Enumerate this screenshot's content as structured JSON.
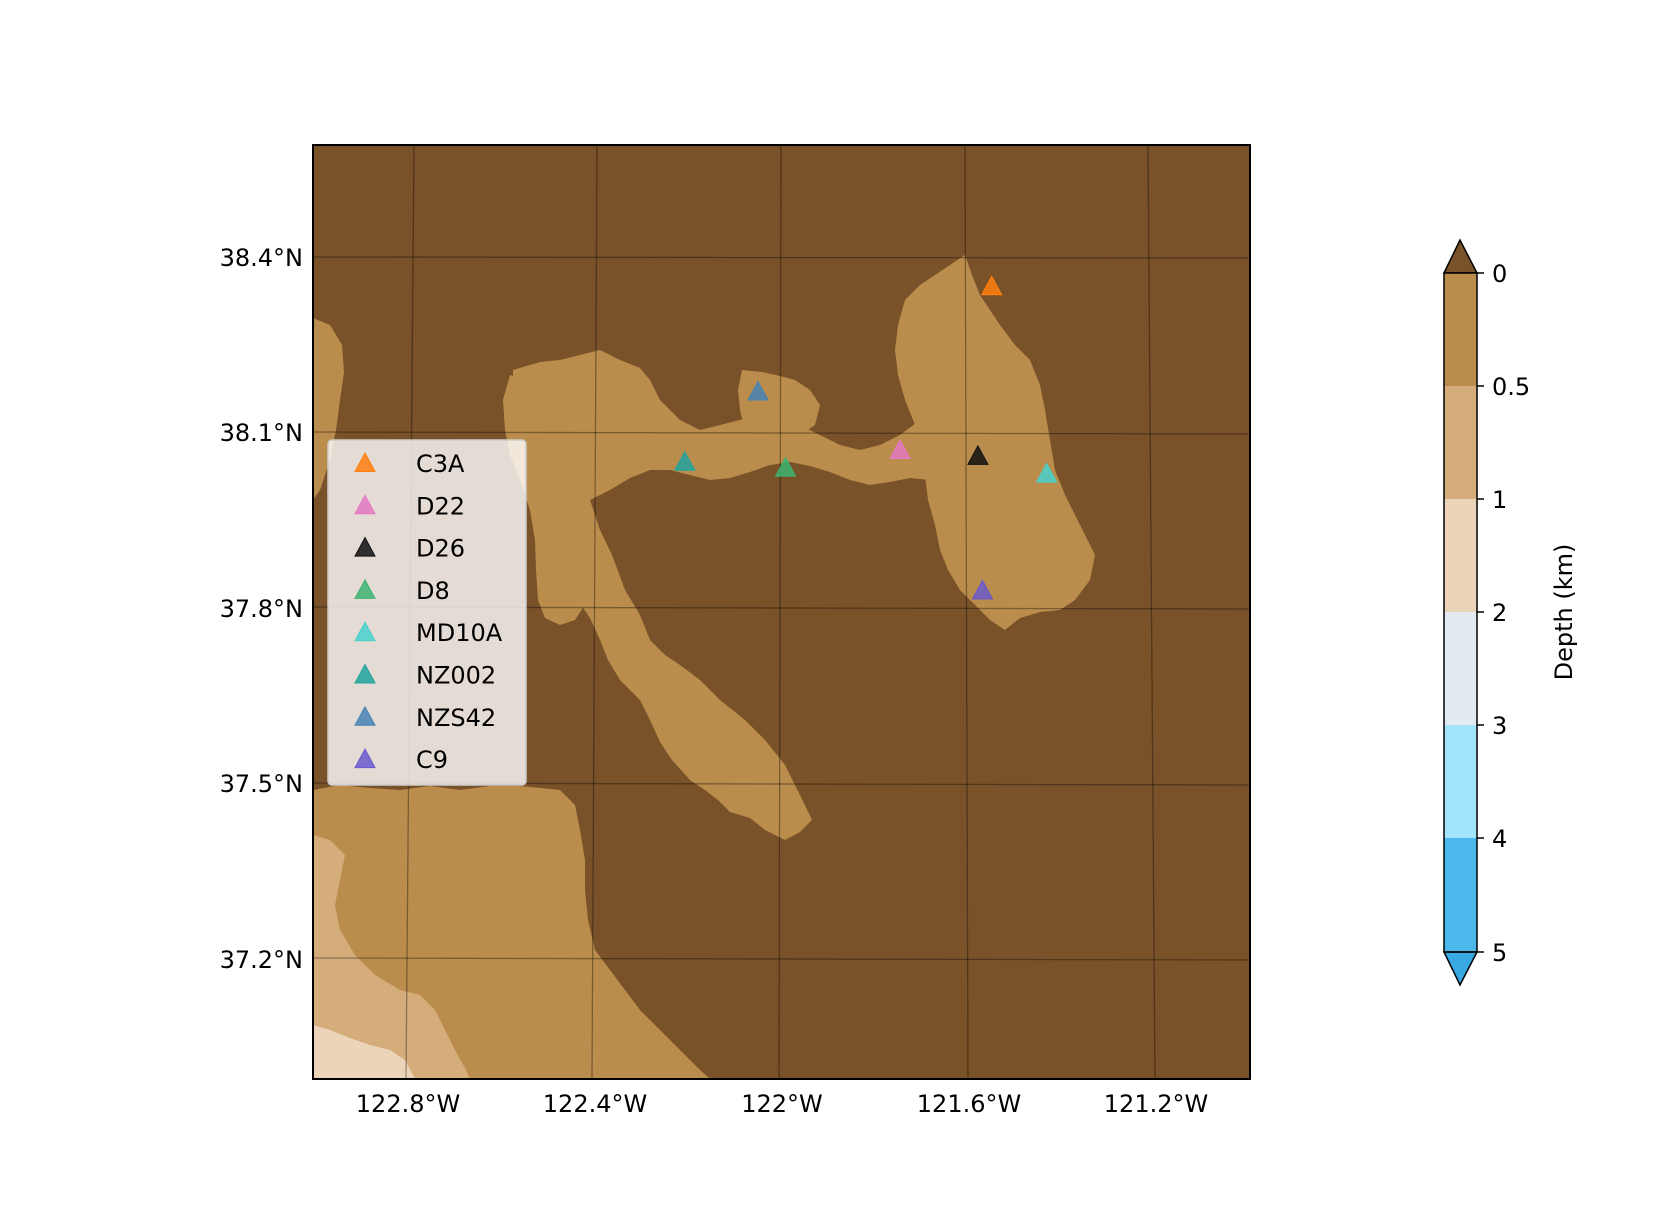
{
  "map": {
    "x_ticks": [
      "122.8°W",
      "122.4°W",
      "122°W",
      "121.6°W",
      "121.2°W"
    ],
    "y_ticks": [
      "38.4°N",
      "38.1°N",
      "37.8°N",
      "37.5°N",
      "37.2°N"
    ],
    "colors": {
      "land": "#7a5229",
      "depth_0_05": "#ba8d4c",
      "depth_05_1": "#d4ad7a",
      "depth_1_2": "#ecd4b8",
      "depth_2_3": "#e3eaf0",
      "depth_3_4": "#a2e4fb",
      "depth_4_5": "#4ab8ea",
      "depth_over_5": "#3aa8e3"
    }
  },
  "stations": [
    {
      "name": "C3A",
      "lon": -121.54,
      "lat": 38.35,
      "color": "#ff7f0e"
    },
    {
      "name": "D22",
      "lon": -121.74,
      "lat": 38.07,
      "color": "#e377c2"
    },
    {
      "name": "D26",
      "lon": -121.57,
      "lat": 38.06,
      "color": "#111111"
    },
    {
      "name": "D8",
      "lon": -121.99,
      "lat": 38.04,
      "color": "#3cb371"
    },
    {
      "name": "MD10A",
      "lon": -121.42,
      "lat": 38.03,
      "color": "#48d1cc"
    },
    {
      "name": "NZ002",
      "lon": -122.21,
      "lat": 38.05,
      "color": "#20a39e"
    },
    {
      "name": "NZS42",
      "lon": -122.05,
      "lat": 38.17,
      "color": "#4682b4"
    },
    {
      "name": "C9",
      "lon": -121.56,
      "lat": 37.83,
      "color": "#6a5acd"
    }
  ],
  "colorbar": {
    "label": "Depth (km)",
    "ticks": [
      "0",
      "0.5",
      "1",
      "2",
      "3",
      "4",
      "5"
    ]
  }
}
